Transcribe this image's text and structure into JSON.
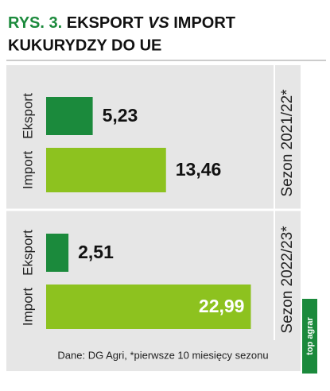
{
  "chart_data": {
    "type": "bar",
    "title_prefix": "RYS. 3.",
    "title": [
      "EKSPORT",
      "VS",
      "IMPORT",
      "KUKURYDZY DO UE"
    ],
    "categories": [
      "Sezon 2021/22*",
      "Sezon 2022/23*"
    ],
    "series": [
      {
        "name": "Eksport",
        "color": "#1b8a3c",
        "values": [
          5.23,
          2.51
        ],
        "value_labels": [
          "5,23",
          "2,51"
        ]
      },
      {
        "name": "Import",
        "color": "#8dc21f",
        "values": [
          13.46,
          22.99
        ],
        "value_labels": [
          "13,46",
          "22,99"
        ]
      }
    ],
    "source": "Dane: DG Agri, *pierwsze 10 miesięcy sezonu",
    "logo": "top agrar"
  }
}
